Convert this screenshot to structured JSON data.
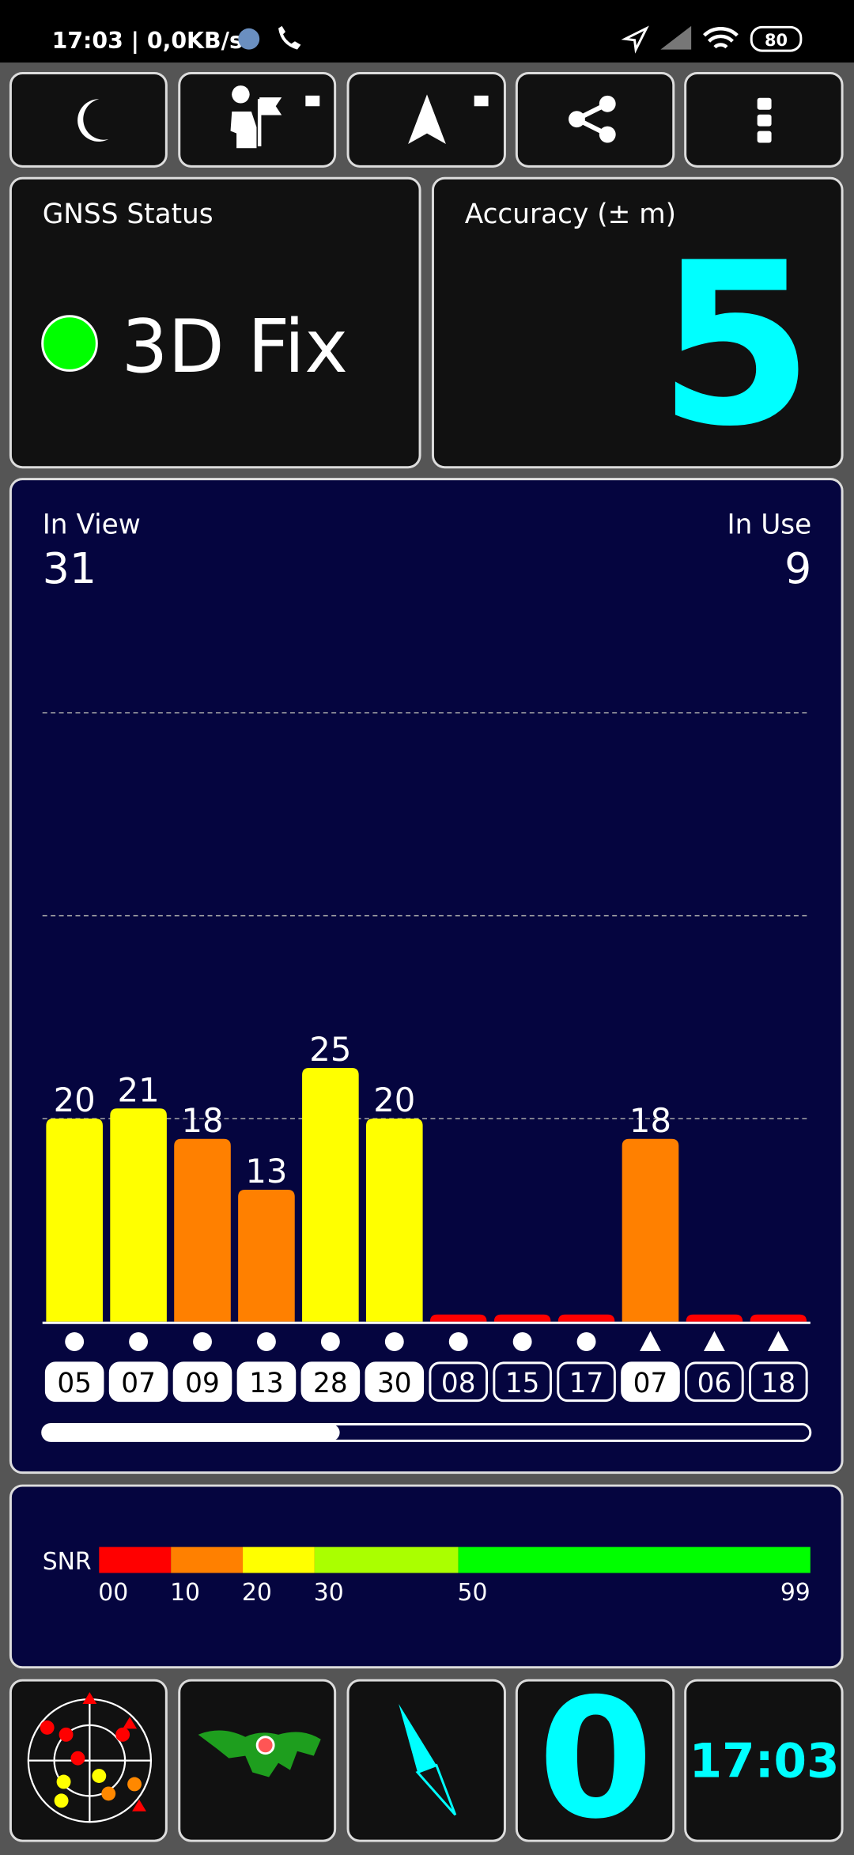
{
  "status_bar": {
    "time_traffic": "17:03 | 0,0KB/s",
    "battery": "80"
  },
  "gnss_status": {
    "title": "GNSS Status",
    "value": "3D Fix",
    "indicator_color": "#00ff00"
  },
  "accuracy": {
    "title": "Accuracy (± m)",
    "value": 5
  },
  "sky": {
    "in_view_label": "In View",
    "in_view": 31,
    "in_use_label": "In Use",
    "in_use": 9,
    "chart_data": {
      "type": "bar",
      "categories": [
        "05",
        "07",
        "09",
        "13",
        "28",
        "30",
        "08",
        "15",
        "17",
        "07",
        "06",
        "18"
      ],
      "values": [
        20,
        21,
        18,
        13,
        25,
        20,
        0,
        0,
        0,
        18,
        0,
        0
      ],
      "value_labels": [
        "20",
        "21",
        "18",
        "13",
        "25",
        "20",
        null,
        null,
        null,
        "18",
        null,
        null
      ],
      "shapes": [
        "circle",
        "circle",
        "circle",
        "circle",
        "circle",
        "circle",
        "circle",
        "circle",
        "circle",
        "triangle",
        "triangle",
        "triangle"
      ],
      "used": [
        true,
        true,
        true,
        true,
        true,
        true,
        false,
        false,
        false,
        true,
        false,
        false
      ],
      "ylim": [
        0,
        80
      ],
      "yticks": [
        20,
        40,
        60
      ],
      "grid": true
    }
  },
  "snr_scale": {
    "label": "SNR",
    "stops": [
      {
        "value": 0,
        "label": "00"
      },
      10,
      20,
      30,
      50,
      99
    ],
    "colors": [
      "#ff0000",
      "#ff8000",
      "#ffff00",
      "#aaff00",
      "#00ff00"
    ]
  },
  "bottom": {
    "speed": 0,
    "clock": "17:03"
  }
}
